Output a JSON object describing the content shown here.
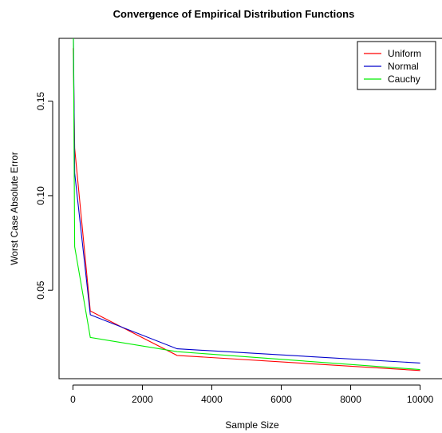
{
  "chart_data": {
    "type": "line",
    "title": "Convergence of Empirical Distribution Functions",
    "xlabel": "Sample Size",
    "ylabel": "Worst Case Absolute Error",
    "xlim": [
      -400,
      10400
    ],
    "ylim": [
      0.0032,
      0.1832
    ],
    "xticks": [
      0,
      2000,
      4000,
      6000,
      8000,
      10000
    ],
    "xtick_labels": [
      "0",
      "2000",
      "4000",
      "6000",
      "8000",
      "10000"
    ],
    "yticks": [
      0.05,
      0.1,
      0.15
    ],
    "ytick_labels": [
      "0.05",
      "0.10",
      "0.15"
    ],
    "grid": false,
    "legend_position": "top-right",
    "x": [
      10,
      50,
      500,
      3000,
      10000
    ],
    "series": [
      {
        "name": "Uniform",
        "color": "#ff0000",
        "values": [
          0.178,
          0.125,
          0.039,
          0.0155,
          0.0075
        ]
      },
      {
        "name": "Normal",
        "color": "#0000cc",
        "values": [
          0.195,
          0.112,
          0.037,
          0.019,
          0.0115
        ]
      },
      {
        "name": "Cauchy",
        "color": "#00ee00",
        "values": [
          0.195,
          0.073,
          0.025,
          0.0175,
          0.008
        ]
      }
    ]
  }
}
